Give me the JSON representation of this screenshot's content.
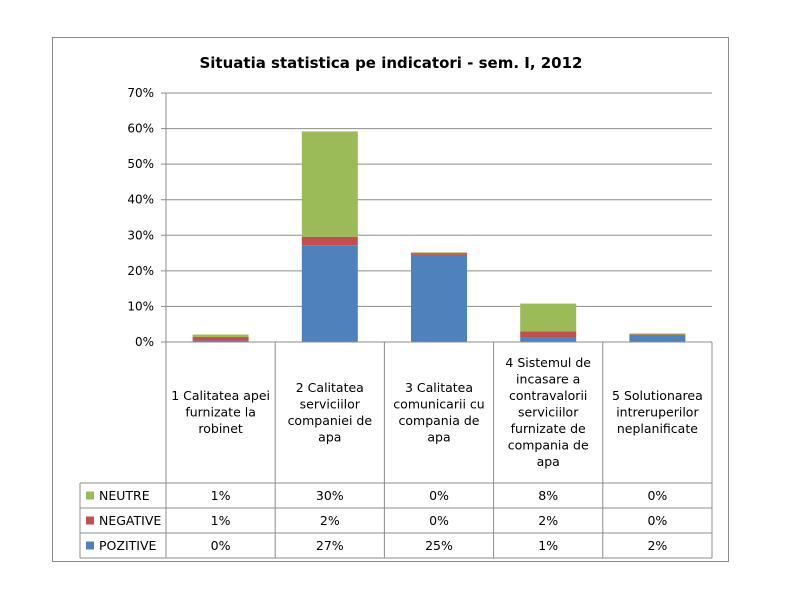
{
  "chart_data": {
    "type": "bar",
    "stacked": true,
    "title": "Situatia statistica pe indicatori - sem. I, 2012",
    "xlabel": "",
    "ylabel": "",
    "ylim": [
      0,
      70
    ],
    "y_ticks": [
      "0%",
      "10%",
      "20%",
      "30%",
      "40%",
      "50%",
      "60%",
      "70%"
    ],
    "grid": true,
    "legend_placement": "data-table",
    "categories": [
      "1 Calitatea apei furnizate la robinet",
      "2 Calitatea serviciilor companiei de apa",
      "3 Calitatea comunicarii cu compania de apa",
      "4 Sistemul de incasare a contravalorii serviciilor furnizate de compania de apa",
      "5 Solutionarea intreruperilor neplanificate"
    ],
    "category_lines": [
      [
        "1 Calitatea apei",
        "furnizate la",
        "robinet"
      ],
      [
        "2 Calitatea",
        "serviciilor",
        "companiei de",
        "apa"
      ],
      [
        "3 Calitatea",
        "comunicarii cu",
        "compania de",
        "apa"
      ],
      [
        "4 Sistemul de",
        "incasare a",
        "contravalorii",
        "serviciilor",
        "furnizate de",
        "compania de",
        "apa"
      ],
      [
        "5 Solutionarea",
        "intreruperilor",
        "neplanificate"
      ]
    ],
    "series": [
      {
        "name": "POZITIVE",
        "color": "#4f81bd",
        "values": [
          0.4,
          27.2,
          24.5,
          1.4,
          1.8
        ],
        "labels": [
          "0%",
          "27%",
          "25%",
          "1%",
          "2%"
        ]
      },
      {
        "name": "NEGATIVE",
        "color": "#c0504d",
        "values": [
          1.0,
          2.4,
          0.5,
          1.6,
          0.3
        ],
        "labels": [
          "1%",
          "2%",
          "0%",
          "2%",
          "0%"
        ]
      },
      {
        "name": "NEUTRE",
        "color": "#9bbb59",
        "values": [
          0.7,
          29.6,
          0.2,
          7.8,
          0.3
        ],
        "labels": [
          "1%",
          "30%",
          "0%",
          "8%",
          "0%"
        ]
      }
    ],
    "table_order": [
      "NEUTRE",
      "NEGATIVE",
      "POZITIVE"
    ]
  }
}
